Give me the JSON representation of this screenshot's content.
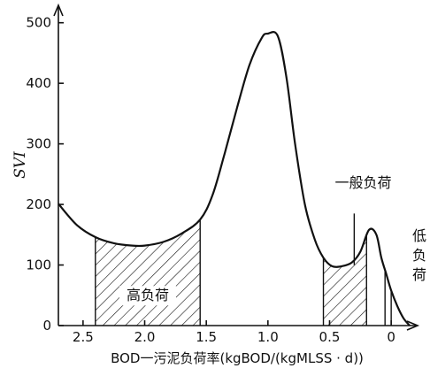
{
  "chart_data": {
    "type": "area",
    "xlabel": "BOD一污泥负荷率(kgBOD/(kgMLSS · d))",
    "ylabel": "SVI",
    "x_reversed": true,
    "xlim": [
      2.7,
      -0.2
    ],
    "ylim": [
      0,
      520
    ],
    "xticks": [
      2.5,
      2.0,
      1.5,
      1.0,
      0.5,
      0
    ],
    "xtick_labels": [
      "2.5",
      "2.0",
      "1.5",
      "1.0",
      "0.5",
      "0"
    ],
    "yticks": [
      0,
      100,
      200,
      300,
      400,
      500
    ],
    "ytick_labels": [
      "0",
      "100",
      "200",
      "300",
      "400",
      "500"
    ],
    "grid": false,
    "series": [
      {
        "x": [
          2.7,
          2.55,
          2.4,
          2.25,
          2.1,
          2.0,
          1.85,
          1.7,
          1.55,
          1.45,
          1.35,
          1.25,
          1.15,
          1.05,
          1.0,
          0.92,
          0.85,
          0.78,
          0.7,
          0.62,
          0.55,
          0.48,
          0.4,
          0.32,
          0.25,
          0.18,
          0.12,
          0.08,
          0.04,
          0.0,
          -0.05,
          -0.1,
          -0.15
        ],
        "y": [
          201,
          166,
          146,
          136,
          132,
          132,
          138,
          152,
          175,
          215,
          285,
          360,
          430,
          475,
          482,
          478,
          410,
          300,
          200,
          142,
          112,
          98,
          98,
          104,
          122,
          158,
          150,
          112,
          85,
          58,
          32,
          12,
          0
        ]
      }
    ],
    "regions": [
      {
        "label": "高负荷",
        "x_range": [
          2.4,
          1.55
        ]
      },
      {
        "label": "一般负荷",
        "x_range": [
          0.55,
          0.2
        ]
      },
      {
        "label": "低负荷",
        "x_range": [
          0.05,
          0.0
        ]
      }
    ]
  }
}
